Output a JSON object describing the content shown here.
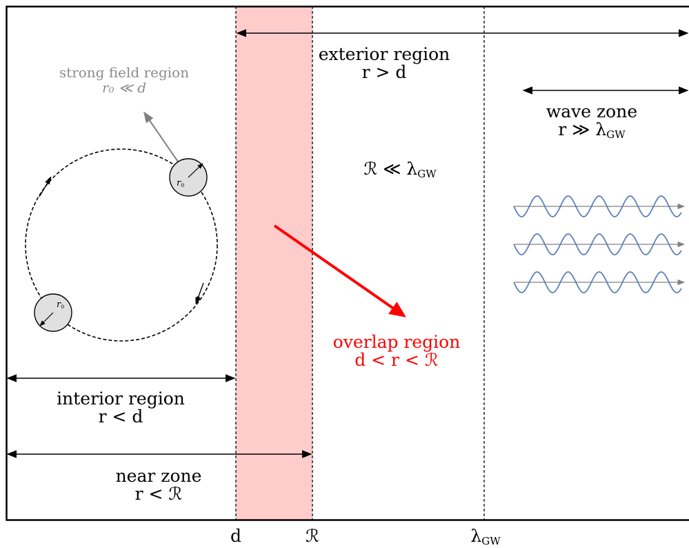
{
  "regions": {
    "strong_field": {
      "line1": "strong field region",
      "line2": "r₀ ≪ d"
    },
    "exterior": {
      "line1": "exterior region",
      "line2": "r > d"
    },
    "wave_zone": {
      "line1": "wave zone",
      "line2": "r ≫ λ",
      "sub": "GW"
    },
    "condition": {
      "text": "ℛ ≪ λ",
      "sub": "GW"
    },
    "overlap": {
      "line1": "overlap region",
      "line2": "d < r < ℛ"
    },
    "interior": {
      "line1": "interior region",
      "line2": "r < d"
    },
    "near_zone": {
      "line1": "near zone",
      "line2": "r < ℛ"
    }
  },
  "bodies": {
    "radius_label": "r",
    "radius_sub": "0"
  },
  "axis_ticks": [
    {
      "label": "d",
      "sub": ""
    },
    {
      "label": "ℛ",
      "sub": ""
    },
    {
      "label": "λ",
      "sub": "GW"
    }
  ],
  "colors": {
    "overlap_band": "#ffcccc",
    "overlap_text": "#ff0000",
    "strong_field_text": "#8c8c8c",
    "wave": "#5b7fb8",
    "wave_arrow": "#808080",
    "body_fill": "#e0e0e0"
  }
}
